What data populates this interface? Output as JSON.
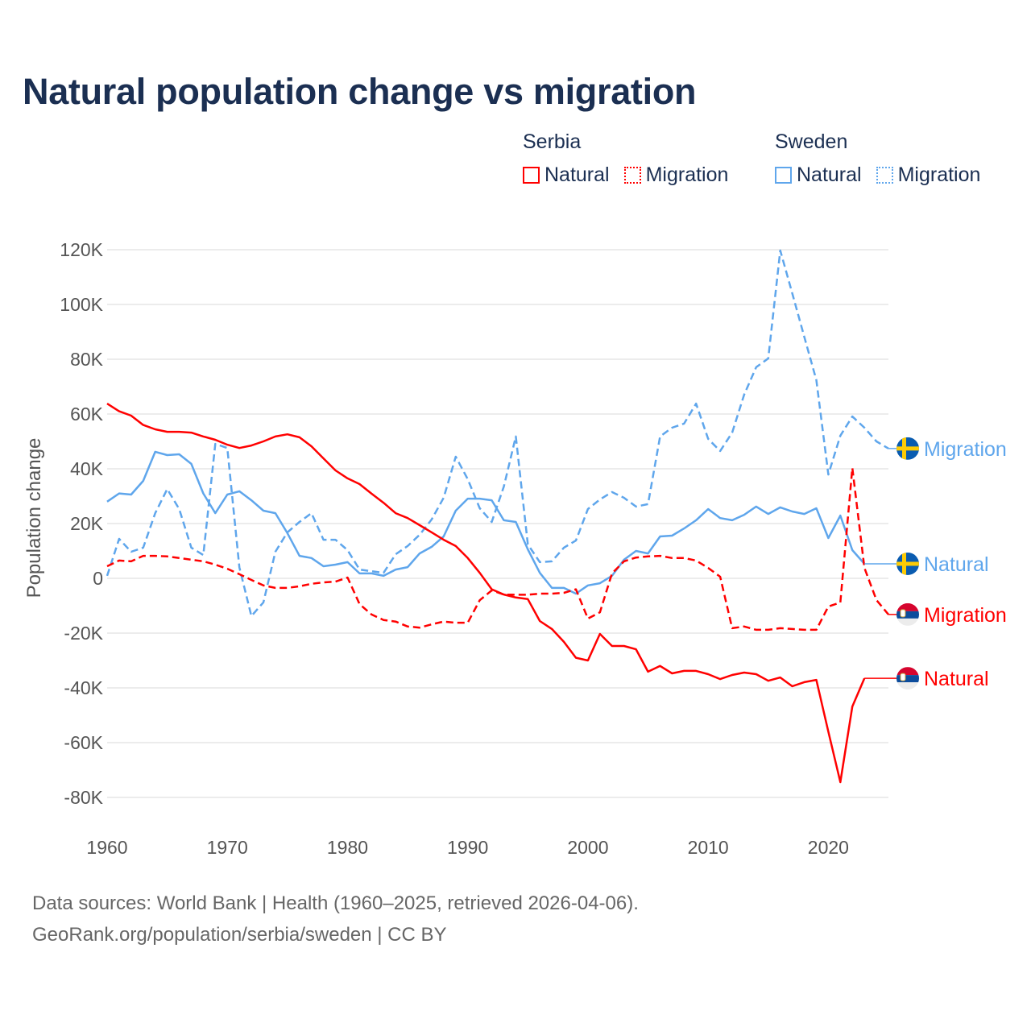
{
  "chart_data": {
    "type": "line",
    "title": "Natural population change vs migration",
    "xlabel": "",
    "ylabel": "Population change",
    "xlim": [
      1960,
      2025
    ],
    "ylim": [
      -80000,
      120000
    ],
    "grid": true,
    "legend_placement": "top-right",
    "x_ticks": [
      "1960",
      "1970",
      "1980",
      "1990",
      "2000",
      "2010",
      "2020"
    ],
    "y_ticks": [
      "120K",
      "100K",
      "80K",
      "60K",
      "40K",
      "20K",
      "0",
      "-20K",
      "-40K",
      "-60K",
      "-80K"
    ],
    "y_tick_values": [
      120000,
      100000,
      80000,
      60000,
      40000,
      20000,
      0,
      -20000,
      -40000,
      -60000,
      -80000
    ],
    "x_tick_values": [
      1960,
      1970,
      1980,
      1990,
      2000,
      2010,
      2020
    ],
    "legend": [
      {
        "group": "Serbia",
        "items": [
          "Natural",
          "Migration"
        ]
      },
      {
        "group": "Sweden",
        "items": [
          "Natural",
          "Migration"
        ]
      }
    ],
    "series": [
      {
        "name": "Sweden Migration",
        "country": "Sweden",
        "kind": "Migration",
        "label": "Migration",
        "color": "#5fa6ec",
        "dashed": true,
        "start_year": 1960,
        "values": [
          900,
          14400,
          9700,
          11200,
          23800,
          32600,
          25300,
          11200,
          8500,
          49100,
          47600,
          4000,
          -13800,
          -8800,
          9700,
          16800,
          20600,
          23800,
          14100,
          14100,
          10300,
          3200,
          2600,
          2000,
          8800,
          11800,
          15900,
          21500,
          29400,
          44400,
          36200,
          25600,
          20600,
          33500,
          51800,
          12400,
          5900,
          6200,
          11200,
          13800,
          25300,
          28800,
          31500,
          29400,
          26200,
          27100,
          51800,
          55000,
          56500,
          63800,
          50900,
          46500,
          53200,
          67100,
          77100,
          80300,
          119700,
          104100,
          88200,
          72400,
          37900,
          52100,
          59100,
          55000,
          50000,
          47400
        ]
      },
      {
        "name": "Sweden Natural",
        "country": "Sweden",
        "kind": "Natural",
        "label": "Natural",
        "color": "#5fa6ec",
        "dashed": false,
        "start_year": 1960,
        "values": [
          28000,
          31000,
          30600,
          35600,
          46200,
          45000,
          45300,
          41800,
          31000,
          23800,
          30600,
          31800,
          28500,
          24700,
          23800,
          16500,
          8200,
          7400,
          4400,
          5000,
          5900,
          1800,
          1800,
          900,
          3200,
          4100,
          9100,
          11500,
          15300,
          24700,
          29100,
          29100,
          28500,
          21200,
          20600,
          10600,
          2000,
          -3500,
          -3500,
          -5600,
          -2600,
          -1800,
          900,
          6800,
          10000,
          9100,
          15300,
          15600,
          18200,
          21200,
          25300,
          22000,
          21200,
          23200,
          26200,
          23500,
          25900,
          24400,
          23500,
          25600,
          14700,
          22900,
          10300,
          5300
        ]
      },
      {
        "name": "Serbia Migration",
        "country": "Serbia",
        "kind": "Migration",
        "label": "Migration",
        "color": "#ff0000",
        "dashed": true,
        "start_year": 1960,
        "values": [
          4400,
          6500,
          6200,
          8200,
          8200,
          8000,
          7400,
          6800,
          6200,
          5000,
          3500,
          1500,
          -600,
          -2600,
          -3500,
          -3500,
          -2900,
          -2000,
          -1500,
          -1200,
          300,
          -9400,
          -13200,
          -15200,
          -15800,
          -17600,
          -18000,
          -16800,
          -15800,
          -16200,
          -16200,
          -8000,
          -4400,
          -5900,
          -6000,
          -6000,
          -5600,
          -5600,
          -5300,
          -4000,
          -14700,
          -12400,
          1800,
          6200,
          7600,
          8000,
          8200,
          7400,
          7400,
          6500,
          3800,
          600,
          -18200,
          -17600,
          -18800,
          -18800,
          -18200,
          -18500,
          -18800,
          -18800,
          -10300,
          -8800,
          40300,
          3800,
          -7900,
          -13200
        ]
      },
      {
        "name": "Serbia Natural",
        "country": "Serbia",
        "kind": "Natural",
        "label": "Natural",
        "color": "#ff0000",
        "dashed": false,
        "start_year": 1960,
        "values": [
          63800,
          61000,
          59400,
          56000,
          54400,
          53500,
          53500,
          53200,
          51800,
          50600,
          48800,
          47600,
          48500,
          50000,
          51800,
          52600,
          51500,
          48200,
          43800,
          39400,
          36500,
          34400,
          30900,
          27600,
          23800,
          22000,
          19400,
          16800,
          14100,
          11800,
          7400,
          2000,
          -4000,
          -5900,
          -7000,
          -7600,
          -15600,
          -18500,
          -23200,
          -29000,
          -30000,
          -20300,
          -24700,
          -24700,
          -25900,
          -34100,
          -32000,
          -34700,
          -33800,
          -33800,
          -35000,
          -36800,
          -35300,
          -34400,
          -35000,
          -37400,
          -36200,
          -39400,
          -37900,
          -37100,
          -56000,
          -74400,
          -46800,
          -36500
        ]
      }
    ]
  },
  "footer": {
    "line1": "Data sources: World Bank | Health (1960–2025, retrieved 2026-04-06).",
    "line2": "GeoRank.org/population/serbia/sweden | CC BY"
  }
}
